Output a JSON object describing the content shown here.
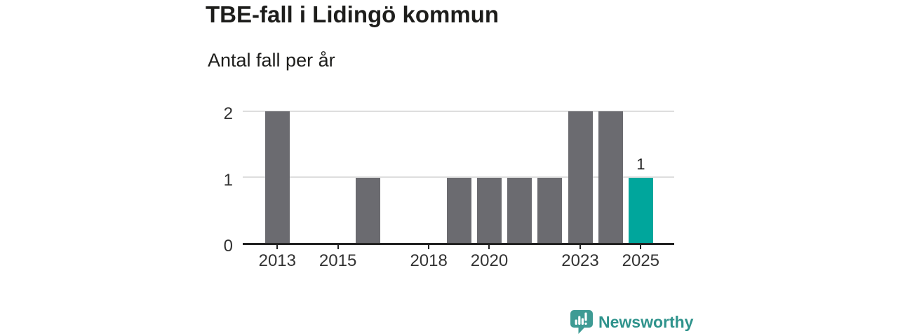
{
  "page": {
    "background": "#ffffff"
  },
  "header": {
    "title": "TBE-fall i Lidingö kommun",
    "subtitle": "Antal fall per år"
  },
  "chart_data": {
    "type": "bar",
    "title": "TBE-fall i Lidingö kommun",
    "subtitle": "Antal fall per år",
    "categories": [
      2013,
      2014,
      2015,
      2016,
      2017,
      2018,
      2019,
      2020,
      2021,
      2022,
      2023,
      2024,
      2025
    ],
    "values": [
      2,
      0,
      0,
      1,
      0,
      0,
      1,
      1,
      1,
      1,
      2,
      2,
      1
    ],
    "xlabel": "",
    "ylabel": "Antal fall per år",
    "ylim": [
      0,
      2
    ],
    "y_ticks": [
      0,
      1,
      2
    ],
    "x_tick_years": [
      2013,
      2015,
      2018,
      2020,
      2023,
      2025
    ],
    "grid": "horizontal",
    "legend": "none",
    "bar_color": "#6B6B70",
    "highlight_year": 2025,
    "highlight_color": "#00A69C",
    "data_labels": {
      "2025": "1"
    }
  },
  "branding": {
    "name": "Newsworthy",
    "text_color": "#2F938C",
    "icon": "bar-chart-speech-bubble-icon",
    "icon_color": "#3E9B94"
  },
  "colors": {
    "title_text": "#1D1D1B",
    "axis_text": "#333333",
    "data_label_text": "#1A1A1A",
    "gridline": "#DEDEDE",
    "axis_line": "#222222"
  }
}
